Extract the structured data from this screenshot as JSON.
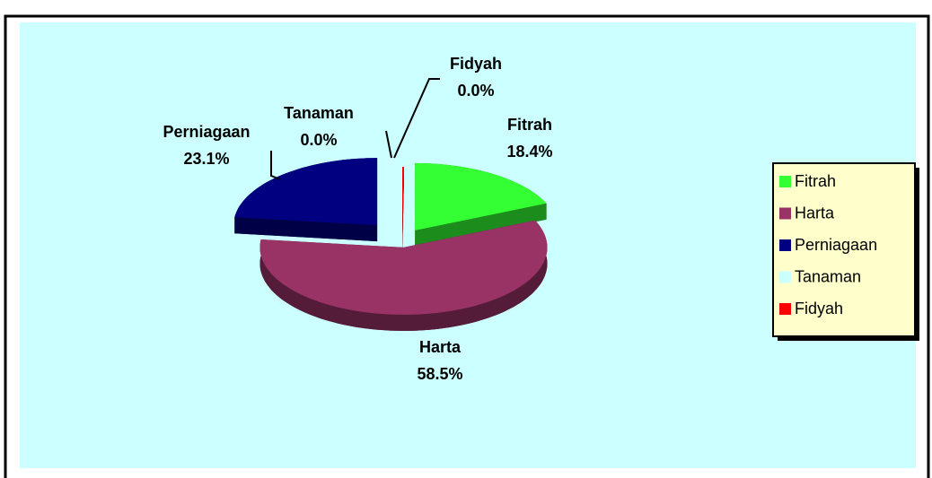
{
  "chart_data": {
    "type": "pie",
    "categories": [
      "Fitrah",
      "Harta",
      "Perniagaan",
      "Tanaman",
      "Fidyah"
    ],
    "values": [
      18.4,
      58.5,
      23.1,
      0,
      0
    ],
    "value_labels": [
      "18.4%",
      "58.5%",
      "23.1%",
      "0.0%",
      "0.0%"
    ],
    "colors": [
      "#33ff33",
      "#993366",
      "#000080",
      "#ccffff",
      "#ff0000"
    ],
    "legend": "right"
  }
}
